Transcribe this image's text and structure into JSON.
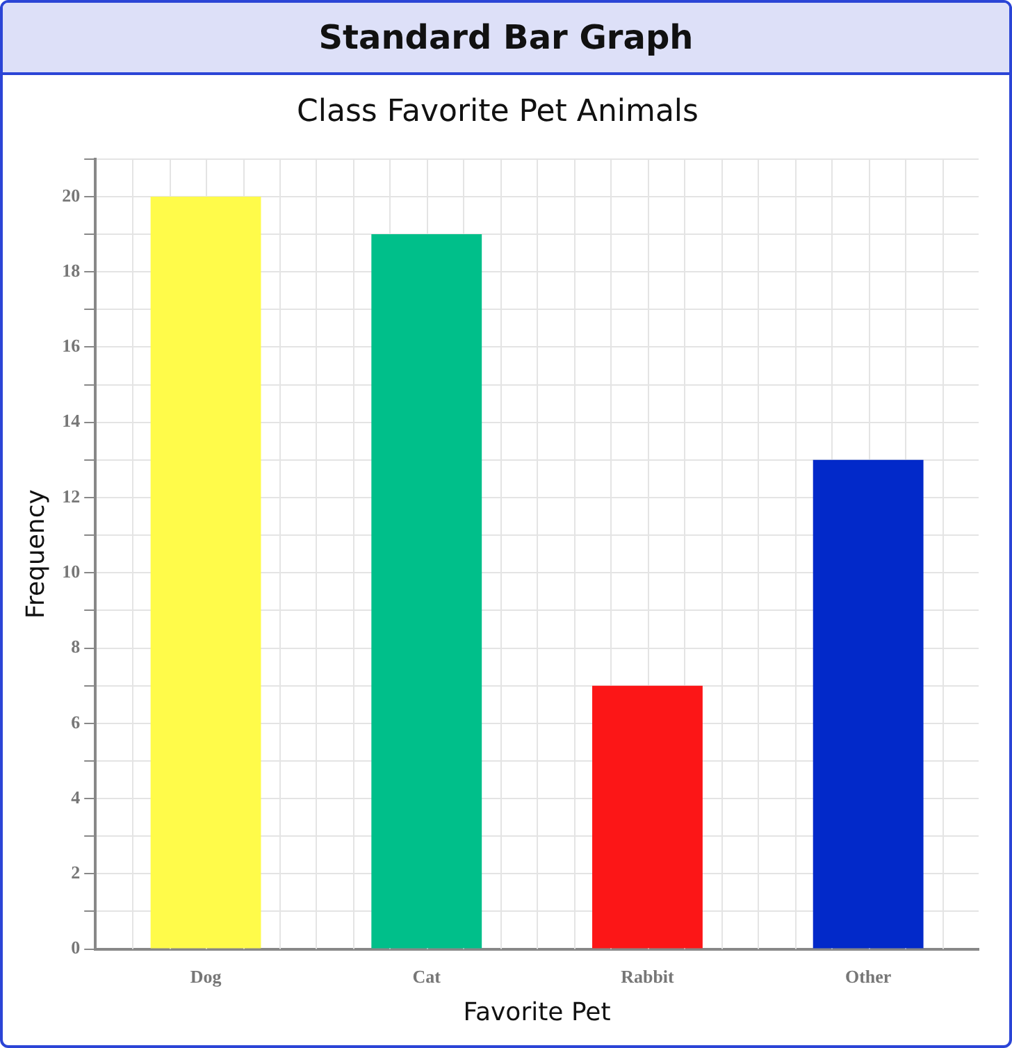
{
  "chart_data": {
    "type": "bar",
    "title": "Class Favorite Pet Animals",
    "annotations": [
      "Standard Bar Graph"
    ],
    "xlabel": "Favorite Pet",
    "ylabel": "Frequency",
    "categories": [
      "Dog",
      "Cat",
      "Rabbit",
      "Other"
    ],
    "values": [
      20,
      19,
      7,
      13
    ],
    "colors": [
      "#fffb4a",
      "#00bf8a",
      "#fc1617",
      "#0229c9"
    ],
    "ylim": [
      0,
      21
    ],
    "yticks": [
      0,
      {
        "value": 1,
        "label": null
      },
      2,
      {
        "value": 3,
        "label": null
      },
      4,
      {
        "value": 5,
        "label": null
      },
      6,
      {
        "value": 7,
        "label": null
      },
      8,
      {
        "value": 9,
        "label": null
      },
      10,
      {
        "value": 11,
        "label": null
      },
      12,
      {
        "value": 13,
        "label": null
      },
      14,
      {
        "value": 15,
        "label": null
      },
      16,
      {
        "value": 17,
        "label": null
      },
      18,
      {
        "value": 19,
        "label": null
      },
      20,
      {
        "value": 21,
        "label": null
      }
    ],
    "grid": true,
    "legend": false
  }
}
